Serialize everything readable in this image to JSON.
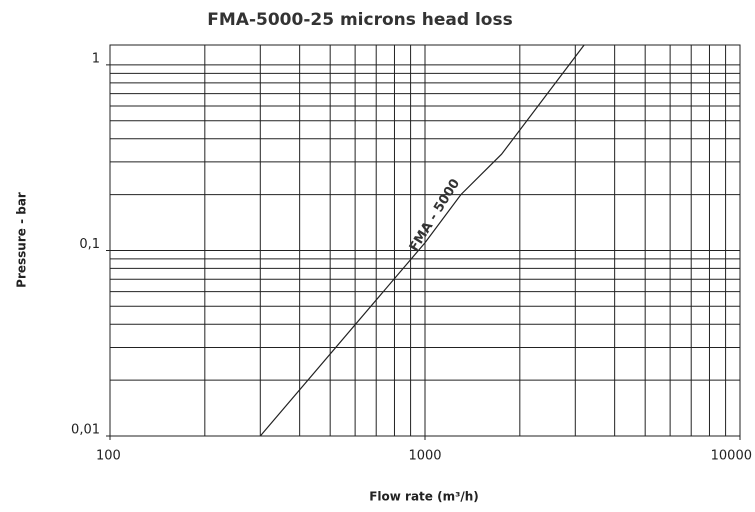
{
  "chart_data": {
    "type": "line",
    "title": "FMA-5000-25 microns head loss",
    "x_label": "Flow rate (m³/h)",
    "y_label": "Pressure - bar",
    "annotation": "FMA - 5000",
    "xlog": true,
    "ylog": true,
    "grid": true,
    "minor_grid": true,
    "xlim": [
      100,
      10000
    ],
    "xticks": [
      100,
      1000,
      10000
    ],
    "ylim": [
      0.01,
      1.28
    ],
    "yticks": [
      {
        "value": 0.01,
        "label": "0,01"
      },
      {
        "value": 0.1,
        "label": "0,1"
      },
      1
    ],
    "series": [
      {
        "name": "FMA - 5000",
        "color": "#222222",
        "x": [
          300,
          1000,
          1300,
          1750,
          3200
        ],
        "values": [
          0.01,
          0.11,
          0.2,
          0.33,
          1.28
        ]
      }
    ]
  }
}
